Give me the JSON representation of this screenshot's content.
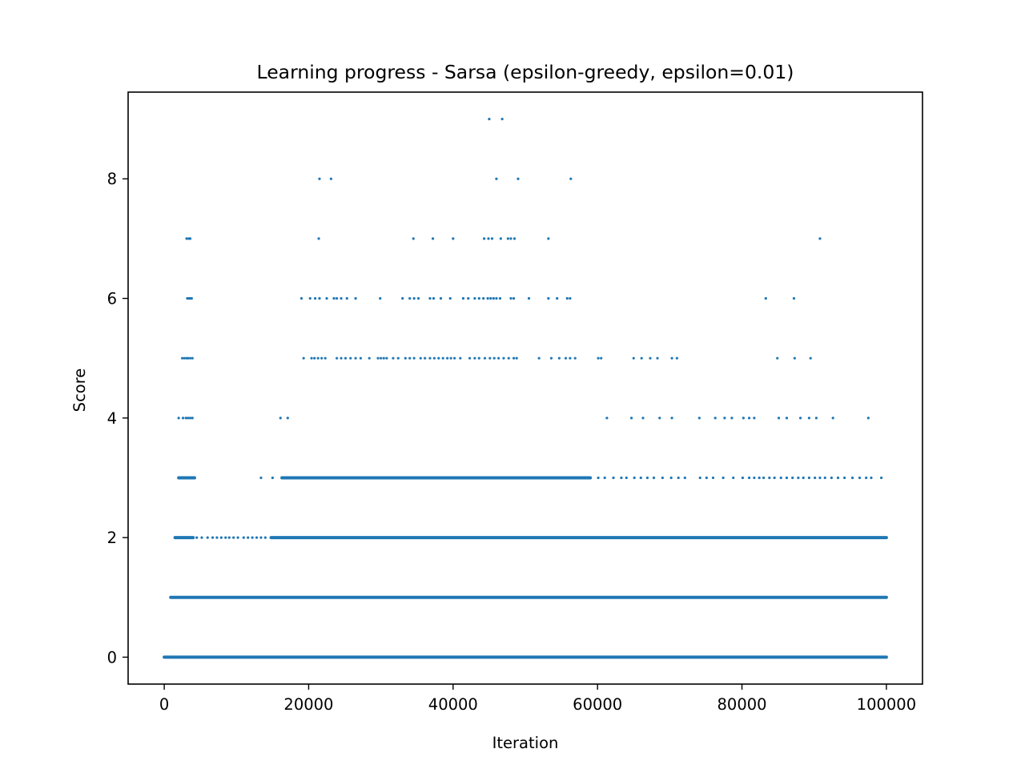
{
  "chart_data": {
    "type": "scatter",
    "title": "Learning progress - Sarsa (epsilon-greedy, epsilon=0.01)",
    "xlabel": "Iteration",
    "ylabel": "Score",
    "xlim": [
      -5000,
      105000
    ],
    "ylim": [
      -0.45,
      9.45
    ],
    "xticks": [
      0,
      20000,
      40000,
      60000,
      80000,
      100000
    ],
    "xtick_labels": [
      "0",
      "20000",
      "40000",
      "60000",
      "80000",
      "100000"
    ],
    "yticks": [
      0,
      2,
      4,
      6,
      8
    ],
    "ytick_labels": [
      "0",
      "2",
      "4",
      "6",
      "8"
    ],
    "grid": false,
    "color": "#1f77b4",
    "series": [
      {
        "dense_ranges": [
          {
            "y": 0,
            "x_start": 0,
            "x_end": 100000
          },
          {
            "y": 1,
            "x_start": 900,
            "x_end": 100000
          },
          {
            "y": 2,
            "x_start": 1500,
            "x_end": 4000
          },
          {
            "y": 2,
            "x_start": 14800,
            "x_end": 100000
          },
          {
            "y": 3,
            "x_start": 2000,
            "x_end": 4200
          },
          {
            "y": 3,
            "x_start": 16300,
            "x_end": 59000
          }
        ],
        "points": [
          {
            "y": 9,
            "x": [
              45000,
              46800
            ]
          },
          {
            "y": 8,
            "x": [
              21500,
              23100,
              46000,
              49000,
              56300
            ]
          },
          {
            "y": 7,
            "x": [
              3100,
              3400,
              3600,
              21400,
              34500,
              37200,
              40000,
              44300,
              44900,
              45400,
              46600,
              47600,
              48000,
              48500,
              53200,
              90800
            ]
          },
          {
            "y": 6,
            "x": [
              3200,
              3400,
              3600,
              3800,
              19000,
              20200,
              20900,
              21500,
              22500,
              23500,
              23900,
              24500,
              25300,
              26500,
              29900,
              33000,
              34000,
              34600,
              35200,
              36800,
              37300,
              38300,
              39600,
              41400,
              42100,
              43000,
              43600,
              44200,
              44800,
              45200,
              45600,
              46000,
              46500,
              48000,
              48400,
              50500,
              53200,
              54400,
              55800,
              56200,
              83300,
              87200
            ]
          },
          {
            "y": 5,
            "x": [
              2500,
              2800,
              3100,
              3300,
              3600,
              3900,
              19300,
              20400,
              20800,
              21300,
              21800,
              22300,
              23900,
              24500,
              25100,
              25800,
              26500,
              27200,
              28400,
              29600,
              30000,
              30400,
              30800,
              31700,
              32400,
              33400,
              34000,
              34600,
              35500,
              36100,
              36800,
              37400,
              38000,
              38600,
              39200,
              39700,
              40200,
              41000,
              42300,
              43000,
              43600,
              44400,
              45100,
              45700,
              46300,
              47000,
              47700,
              48400,
              48800,
              51900,
              53600,
              54700,
              55600,
              56200,
              56900,
              60100,
              60500,
              65000,
              66100,
              67300,
              68300,
              70300,
              71000,
              84900,
              87300,
              89500
            ]
          },
          {
            "y": 4,
            "x": [
              2000,
              2600,
              3000,
              3300,
              3600,
              3900,
              16100,
              17100,
              61300,
              64700,
              66300,
              68600,
              70300,
              74100,
              76300,
              77600,
              78600,
              80200,
              81000,
              81700,
              85100,
              86200,
              88100,
              89300,
              90300,
              92600,
              97500
            ]
          },
          {
            "y": 3,
            "x": [
              13400,
              15000,
              59000,
              60100,
              61000,
              62200,
              63300,
              64000,
              65100,
              66000,
              66900,
              67800,
              69000,
              70200,
              71200,
              72100,
              74200,
              75100,
              76000,
              77400,
              78800,
              80100,
              81000,
              81700,
              82400,
              83000,
              83800,
              84500,
              85400,
              86200,
              87000,
              87800,
              88500,
              89300,
              90100,
              90800,
              91500,
              92400,
              93300,
              94200,
              95300,
              96300,
              97200,
              97900,
              99300
            ]
          },
          {
            "y": 2,
            "x": [
              4500,
              5200,
              6000,
              6700,
              7300,
              7900,
              8500,
              9000,
              9600,
              10200,
              11000,
              11600,
              12200,
              12800,
              13400,
              14000
            ]
          }
        ]
      }
    ]
  }
}
